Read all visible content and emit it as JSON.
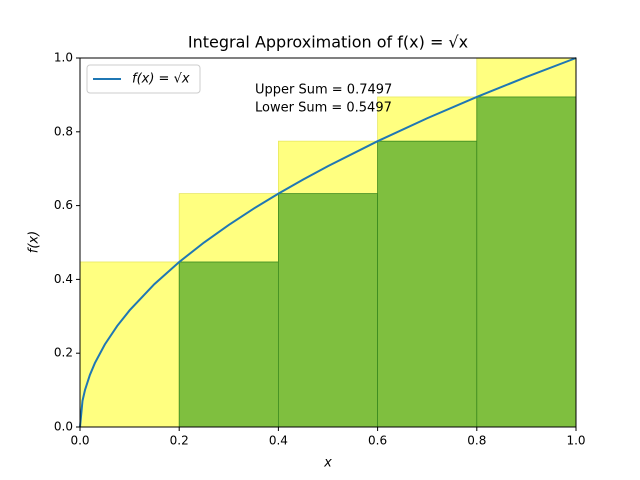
{
  "chart_data": {
    "type": "bar",
    "title": "Integral Approximation of f(x) = √x",
    "xlabel": "x",
    "ylabel": "f(x)",
    "bins": [
      0,
      0.2,
      0.4,
      0.6,
      0.8,
      1.0
    ],
    "bars": [
      {
        "color": "#ffff80",
        "edge": "#e8e860",
        "values": [
          0.4472,
          0.6325,
          0.7746,
          0.8944,
          1.0
        ]
      },
      {
        "color": "#7fbf3f",
        "edge": "#3a8a1f",
        "values": [
          0,
          0.4472,
          0.6325,
          0.7746,
          0.8944
        ]
      }
    ],
    "line": {
      "type": "line",
      "name": "f(x) = √x",
      "color": "#1f77b4",
      "x": [
        0,
        0.005,
        0.01,
        0.02,
        0.03,
        0.05,
        0.075,
        0.1,
        0.15,
        0.2,
        0.25,
        0.3,
        0.35,
        0.4,
        0.45,
        0.5,
        0.6,
        0.7,
        0.8,
        0.9,
        1.0
      ],
      "values": [
        0,
        0.0707,
        0.1,
        0.1414,
        0.1732,
        0.2236,
        0.2739,
        0.3162,
        0.3873,
        0.4472,
        0.5,
        0.5477,
        0.5916,
        0.6325,
        0.6708,
        0.7071,
        0.7746,
        0.8367,
        0.8944,
        0.9487,
        1.0
      ]
    },
    "annotations": [
      "Upper Sum = 0.7497",
      "Lower Sum = 0.5497"
    ],
    "xlim": [
      0,
      1
    ],
    "ylim": [
      0,
      1
    ],
    "xticks": [
      {
        "value": 0,
        "label": "0.0"
      },
      {
        "value": 0.2,
        "label": "0.2"
      },
      {
        "value": 0.4,
        "label": "0.4"
      },
      {
        "value": 0.6,
        "label": "0.6"
      },
      {
        "value": 0.8,
        "label": "0.8"
      },
      {
        "value": 1.0,
        "label": "1.0"
      }
    ],
    "yticks": [
      {
        "value": 0,
        "label": "0.0"
      },
      {
        "value": 0.2,
        "label": "0.2"
      },
      {
        "value": 0.4,
        "label": "0.4"
      },
      {
        "value": 0.6,
        "label": "0.6"
      },
      {
        "value": 0.8,
        "label": "0.8"
      },
      {
        "value": 1.0,
        "label": "1.0"
      }
    ],
    "legend": "upper left"
  }
}
